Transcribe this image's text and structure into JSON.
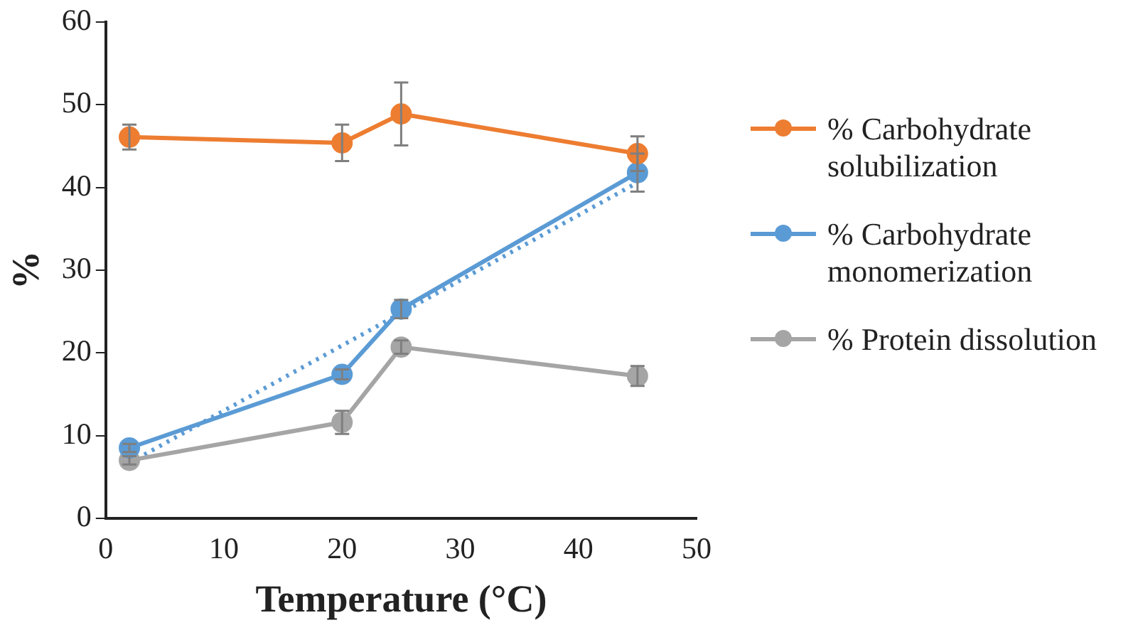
{
  "chart_data": {
    "type": "line",
    "xlabel": "Temperature (°C)",
    "ylabel": "%",
    "x": [
      2,
      20,
      25,
      45
    ],
    "xlim": [
      0,
      50
    ],
    "xticks": [
      0,
      10,
      20,
      30,
      40,
      50
    ],
    "ylim": [
      0,
      60
    ],
    "yticks": [
      0,
      10,
      20,
      30,
      40,
      50,
      60
    ],
    "grid": false,
    "legend": "right",
    "marker": "circle",
    "series": [
      {
        "name": "% Carbohydrate solubilization",
        "color": "#ed7d31",
        "values": [
          46.1,
          45.4,
          48.9,
          44.1
        ],
        "errors": [
          1.5,
          2.2,
          3.8,
          2.1
        ]
      },
      {
        "name": "% Carbohydrate monomerization",
        "color": "#5b9bd5",
        "values": [
          8.5,
          17.4,
          25.3,
          41.8
        ],
        "errors": [
          0.5,
          0.6,
          1.1,
          2.3
        ]
      },
      {
        "name": "% Protein dissolution",
        "color": "#a5a5a5",
        "values": [
          7.0,
          11.6,
          20.7,
          17.2
        ],
        "errors": [
          0.5,
          1.4,
          0.8,
          1.2
        ]
      },
      {
        "type": "line",
        "color": "#5b9bd5",
        "x": [
          2,
          45
        ],
        "values": [
          6.7,
          40.6
        ],
        "marker": "none",
        "line_style": "dotted"
      }
    ]
  }
}
